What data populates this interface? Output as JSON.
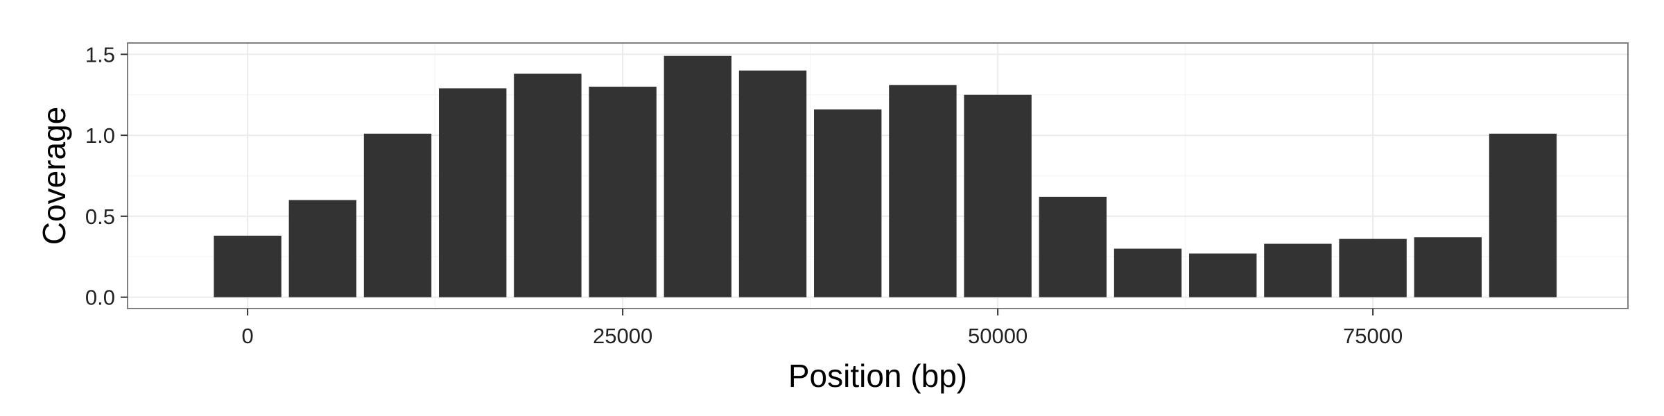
{
  "chart_data": {
    "type": "bar",
    "title": "",
    "xlabel": "Position (bp)",
    "ylabel": "Coverage",
    "xlim": [
      -8000,
      92000
    ],
    "ylim": [
      -0.07,
      1.57
    ],
    "bar_width": 4500,
    "x_ticks": [
      0,
      25000,
      50000,
      75000
    ],
    "x_tick_labels": [
      "0",
      "25000",
      "50000",
      "75000"
    ],
    "y_ticks": [
      0.0,
      0.5,
      1.0,
      1.5
    ],
    "y_tick_labels": [
      "0.0",
      "0.5",
      "1.0",
      "1.5"
    ],
    "grid": true,
    "legend": "none",
    "colors": {
      "bar": "#333333",
      "grid_major": "#ebebeb",
      "grid_minor": "#f5f5f5",
      "panel_border": "#7f7f7f"
    },
    "x": [
      0,
      5000,
      10000,
      15000,
      20000,
      25000,
      30000,
      35000,
      40000,
      45000,
      50000,
      55000,
      60000,
      65000,
      70000,
      75000,
      80000,
      85000
    ],
    "values": [
      0.38,
      0.6,
      1.01,
      1.29,
      1.38,
      1.3,
      1.49,
      1.4,
      1.16,
      1.31,
      1.25,
      0.62,
      0.3,
      0.27,
      0.33,
      0.36,
      0.37,
      1.01
    ]
  }
}
